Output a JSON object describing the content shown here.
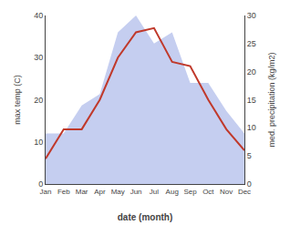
{
  "chart_data": {
    "type": "line",
    "xlabel": "date (month)",
    "ylabel": "max temp (C)",
    "y2label": "med. precipitation (kg/m2)",
    "categories": [
      "Jan",
      "Feb",
      "Mar",
      "Apr",
      "May",
      "Jun",
      "Jul",
      "Aug",
      "Sep",
      "Oct",
      "Nov",
      "Dec"
    ],
    "series": [
      {
        "type": "area",
        "axis": "y2",
        "color": "#c5cef0",
        "values": [
          9,
          9,
          14,
          16,
          27,
          30,
          25,
          27,
          18,
          18,
          13,
          9
        ]
      },
      {
        "type": "line",
        "color": "#c0392b",
        "values": [
          6,
          13,
          13,
          20,
          30,
          36,
          37,
          29,
          28,
          20,
          13,
          8
        ]
      }
    ],
    "ylim": [
      0,
      40
    ],
    "yticks": [
      0,
      10,
      20,
      30,
      40
    ],
    "y2lim": [
      0,
      30
    ],
    "y2ticks": [
      0,
      5,
      10,
      15,
      20,
      25,
      30
    ],
    "grid": false
  }
}
